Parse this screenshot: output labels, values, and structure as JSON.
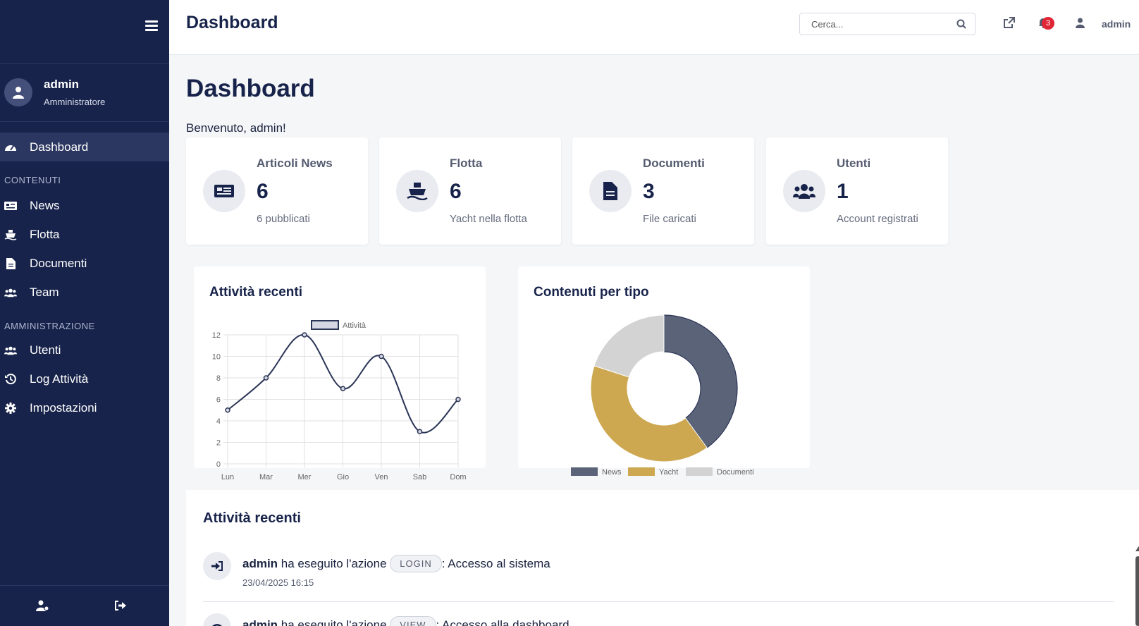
{
  "sidebar": {
    "user": {
      "name": "admin",
      "role": "Amministratore"
    },
    "items": [
      {
        "label": "Dashboard",
        "icon": "speedometer-icon",
        "active": true
      },
      {
        "label": "News",
        "icon": "newspaper-icon"
      },
      {
        "label": "Flotta",
        "icon": "ship-icon"
      },
      {
        "label": "Documenti",
        "icon": "file-icon"
      },
      {
        "label": "Team",
        "icon": "users-icon"
      },
      {
        "label": "Utenti",
        "icon": "users-icon"
      },
      {
        "label": "Log Attività",
        "icon": "history-icon"
      },
      {
        "label": "Impostazioni",
        "icon": "gear-icon"
      }
    ],
    "sections": {
      "content": "CONTENUTI",
      "admin": "AMMINISTRAZIONE"
    }
  },
  "header": {
    "title": "Dashboard",
    "search_placeholder": "Cerca...",
    "notification_count": "3",
    "user": "admin"
  },
  "main": {
    "title": "Dashboard",
    "welcome": "Benvenuto, admin!",
    "cards": [
      {
        "title": "Articoli News",
        "value": "6",
        "sub": "6 pubblicati",
        "icon": "newspaper-icon"
      },
      {
        "title": "Flotta",
        "value": "6",
        "sub": "Yacht nella flotta",
        "icon": "ship-icon"
      },
      {
        "title": "Documenti",
        "value": "3",
        "sub": "File caricati",
        "icon": "file-icon"
      },
      {
        "title": "Utenti",
        "value": "1",
        "sub": "Account registrati",
        "icon": "users-icon"
      }
    ],
    "line_panel_title": "Attività recenti",
    "pie_panel_title": "Contenuti per tipo",
    "activity": {
      "title": "Attività recenti",
      "rows": [
        {
          "user": "admin",
          "text": "ha eseguito l'azione",
          "action": "LOGIN",
          "desc": ": Accesso al sistema",
          "time": "23/04/2025 16:15",
          "icon": "sign-in-icon"
        },
        {
          "user": "admin",
          "text": "ha eseguito l'azione",
          "action": "VIEW",
          "desc": ": Accesso alla dashboard",
          "time": "",
          "icon": "eye-icon"
        }
      ]
    }
  },
  "colors": {
    "navy": "#17234a",
    "slate": "#5a6378",
    "gold": "#cda851",
    "grey": "#d3d3d3"
  },
  "chart_data": [
    {
      "type": "line",
      "title": "Attività recenti",
      "categories": [
        "Lun",
        "Mar",
        "Mer",
        "Gio",
        "Ven",
        "Sab",
        "Dom"
      ],
      "series": [
        {
          "name": "Attività",
          "values": [
            5,
            8,
            12,
            7,
            10,
            3,
            6
          ]
        }
      ],
      "ylim": [
        0,
        12
      ],
      "yticks": [
        "0",
        "2",
        "4",
        "6",
        "8",
        "10",
        "12"
      ],
      "grid": true,
      "legend": "top"
    },
    {
      "type": "pie",
      "title": "Contenuti per tipo",
      "labels": [
        "News",
        "Yacht",
        "Documenti"
      ],
      "values": [
        6,
        6,
        3
      ],
      "donut": true,
      "legend": "bottom"
    }
  ]
}
